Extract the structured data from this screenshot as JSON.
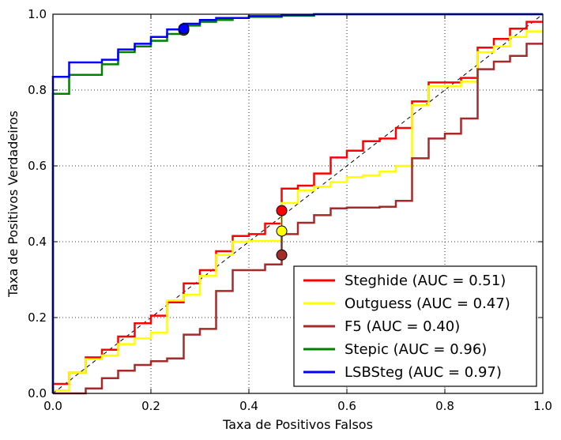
{
  "chart_data": {
    "type": "line",
    "xlabel": "Taxa de Positivos Falsos",
    "ylabel": "Taxa de Positivos Verdadeiros",
    "xlim": [
      0.0,
      1.0
    ],
    "ylim": [
      0.0,
      1.0
    ],
    "xticks": [
      "0.0",
      "0.2",
      "0.4",
      "0.6",
      "0.8",
      "1.0"
    ],
    "yticks": [
      "0.0",
      "0.2",
      "0.4",
      "0.6",
      "0.8",
      "1.0"
    ],
    "grid": true,
    "legend_position": "lower-right",
    "diagonal_reference": true,
    "series": [
      {
        "name": "Steghide (AUC = 0.51)",
        "color": "#ff0000",
        "points": [
          [
            0,
            0
          ],
          [
            0,
            0.025
          ],
          [
            0.033,
            0.025
          ],
          [
            0.033,
            0.055
          ],
          [
            0.067,
            0.055
          ],
          [
            0.067,
            0.095
          ],
          [
            0.1,
            0.095
          ],
          [
            0.1,
            0.115
          ],
          [
            0.133,
            0.115
          ],
          [
            0.133,
            0.15
          ],
          [
            0.167,
            0.15
          ],
          [
            0.167,
            0.185
          ],
          [
            0.2,
            0.185
          ],
          [
            0.2,
            0.205
          ],
          [
            0.233,
            0.205
          ],
          [
            0.233,
            0.24
          ],
          [
            0.267,
            0.24
          ],
          [
            0.267,
            0.29
          ],
          [
            0.3,
            0.29
          ],
          [
            0.3,
            0.325
          ],
          [
            0.333,
            0.325
          ],
          [
            0.333,
            0.375
          ],
          [
            0.367,
            0.375
          ],
          [
            0.367,
            0.415
          ],
          [
            0.4,
            0.415
          ],
          [
            0.4,
            0.42
          ],
          [
            0.433,
            0.42
          ],
          [
            0.433,
            0.448
          ],
          [
            0.467,
            0.448
          ],
          [
            0.467,
            0.54
          ],
          [
            0.5,
            0.54
          ],
          [
            0.5,
            0.548
          ],
          [
            0.533,
            0.548
          ],
          [
            0.533,
            0.58
          ],
          [
            0.567,
            0.58
          ],
          [
            0.567,
            0.622
          ],
          [
            0.6,
            0.622
          ],
          [
            0.6,
            0.64
          ],
          [
            0.633,
            0.64
          ],
          [
            0.633,
            0.665
          ],
          [
            0.667,
            0.665
          ],
          [
            0.667,
            0.672
          ],
          [
            0.7,
            0.672
          ],
          [
            0.7,
            0.7
          ],
          [
            0.733,
            0.7
          ],
          [
            0.733,
            0.77
          ],
          [
            0.767,
            0.77
          ],
          [
            0.767,
            0.82
          ],
          [
            0.833,
            0.82
          ],
          [
            0.833,
            0.832
          ],
          [
            0.867,
            0.832
          ],
          [
            0.867,
            0.912
          ],
          [
            0.9,
            0.912
          ],
          [
            0.9,
            0.935
          ],
          [
            0.933,
            0.935
          ],
          [
            0.933,
            0.962
          ],
          [
            0.967,
            0.962
          ],
          [
            0.967,
            0.98
          ],
          [
            1.0,
            0.98
          ]
        ]
      },
      {
        "name": "Outguess (AUC = 0.47)",
        "color": "#ffff00",
        "points": [
          [
            0,
            0
          ],
          [
            0,
            0.008
          ],
          [
            0.033,
            0.008
          ],
          [
            0.033,
            0.055
          ],
          [
            0.067,
            0.055
          ],
          [
            0.067,
            0.09
          ],
          [
            0.1,
            0.09
          ],
          [
            0.1,
            0.1
          ],
          [
            0.133,
            0.1
          ],
          [
            0.133,
            0.13
          ],
          [
            0.167,
            0.13
          ],
          [
            0.167,
            0.145
          ],
          [
            0.2,
            0.145
          ],
          [
            0.2,
            0.16
          ],
          [
            0.233,
            0.16
          ],
          [
            0.233,
            0.245
          ],
          [
            0.267,
            0.245
          ],
          [
            0.267,
            0.26
          ],
          [
            0.3,
            0.26
          ],
          [
            0.3,
            0.31
          ],
          [
            0.333,
            0.31
          ],
          [
            0.333,
            0.365
          ],
          [
            0.367,
            0.365
          ],
          [
            0.367,
            0.4
          ],
          [
            0.4,
            0.4
          ],
          [
            0.4,
            0.402
          ],
          [
            0.467,
            0.402
          ],
          [
            0.467,
            0.502
          ],
          [
            0.5,
            0.502
          ],
          [
            0.5,
            0.535
          ],
          [
            0.533,
            0.535
          ],
          [
            0.533,
            0.545
          ],
          [
            0.567,
            0.545
          ],
          [
            0.567,
            0.557
          ],
          [
            0.6,
            0.557
          ],
          [
            0.6,
            0.57
          ],
          [
            0.633,
            0.57
          ],
          [
            0.633,
            0.575
          ],
          [
            0.667,
            0.575
          ],
          [
            0.667,
            0.585
          ],
          [
            0.7,
            0.585
          ],
          [
            0.7,
            0.6
          ],
          [
            0.733,
            0.6
          ],
          [
            0.733,
            0.76
          ],
          [
            0.767,
            0.76
          ],
          [
            0.767,
            0.81
          ],
          [
            0.833,
            0.81
          ],
          [
            0.833,
            0.822
          ],
          [
            0.867,
            0.822
          ],
          [
            0.867,
            0.9
          ],
          [
            0.9,
            0.9
          ],
          [
            0.9,
            0.915
          ],
          [
            0.933,
            0.915
          ],
          [
            0.933,
            0.94
          ],
          [
            0.967,
            0.94
          ],
          [
            0.967,
            0.955
          ],
          [
            1.0,
            0.955
          ]
        ]
      },
      {
        "name": "F5 (AUC = 0.40)",
        "color": "#a52a2a",
        "points": [
          [
            0,
            0
          ],
          [
            0,
            0.0
          ],
          [
            0.067,
            0.0
          ],
          [
            0.067,
            0.013
          ],
          [
            0.1,
            0.013
          ],
          [
            0.1,
            0.04
          ],
          [
            0.133,
            0.04
          ],
          [
            0.133,
            0.06
          ],
          [
            0.167,
            0.06
          ],
          [
            0.167,
            0.075
          ],
          [
            0.2,
            0.075
          ],
          [
            0.2,
            0.085
          ],
          [
            0.233,
            0.085
          ],
          [
            0.233,
            0.092
          ],
          [
            0.267,
            0.092
          ],
          [
            0.267,
            0.155
          ],
          [
            0.3,
            0.155
          ],
          [
            0.3,
            0.17
          ],
          [
            0.333,
            0.17
          ],
          [
            0.333,
            0.27
          ],
          [
            0.367,
            0.27
          ],
          [
            0.367,
            0.325
          ],
          [
            0.433,
            0.325
          ],
          [
            0.433,
            0.34
          ],
          [
            0.467,
            0.34
          ],
          [
            0.467,
            0.42
          ],
          [
            0.5,
            0.42
          ],
          [
            0.5,
            0.45
          ],
          [
            0.533,
            0.45
          ],
          [
            0.533,
            0.47
          ],
          [
            0.567,
            0.47
          ],
          [
            0.567,
            0.488
          ],
          [
            0.6,
            0.488
          ],
          [
            0.6,
            0.49
          ],
          [
            0.667,
            0.49
          ],
          [
            0.667,
            0.492
          ],
          [
            0.7,
            0.492
          ],
          [
            0.7,
            0.508
          ],
          [
            0.733,
            0.508
          ],
          [
            0.733,
            0.62
          ],
          [
            0.767,
            0.62
          ],
          [
            0.767,
            0.672
          ],
          [
            0.8,
            0.672
          ],
          [
            0.8,
            0.685
          ],
          [
            0.833,
            0.685
          ],
          [
            0.833,
            0.725
          ],
          [
            0.867,
            0.725
          ],
          [
            0.867,
            0.855
          ],
          [
            0.9,
            0.855
          ],
          [
            0.9,
            0.875
          ],
          [
            0.933,
            0.875
          ],
          [
            0.933,
            0.89
          ],
          [
            0.967,
            0.89
          ],
          [
            0.967,
            0.922
          ],
          [
            1.0,
            0.922
          ]
        ]
      },
      {
        "name": "Stepic (AUC = 0.96)",
        "color": "#008000",
        "points": [
          [
            0,
            0
          ],
          [
            0,
            0.79
          ],
          [
            0.033,
            0.79
          ],
          [
            0.033,
            0.84
          ],
          [
            0.1,
            0.84
          ],
          [
            0.1,
            0.868
          ],
          [
            0.133,
            0.868
          ],
          [
            0.133,
            0.9
          ],
          [
            0.167,
            0.9
          ],
          [
            0.167,
            0.915
          ],
          [
            0.2,
            0.915
          ],
          [
            0.2,
            0.93
          ],
          [
            0.233,
            0.93
          ],
          [
            0.233,
            0.948
          ],
          [
            0.267,
            0.948
          ],
          [
            0.267,
            0.97
          ],
          [
            0.3,
            0.97
          ],
          [
            0.3,
            0.98
          ],
          [
            0.333,
            0.98
          ],
          [
            0.333,
            0.985
          ],
          [
            0.367,
            0.985
          ],
          [
            0.367,
            0.99
          ],
          [
            0.4,
            0.99
          ],
          [
            0.4,
            0.993
          ],
          [
            0.467,
            0.993
          ],
          [
            0.467,
            0.996
          ],
          [
            0.533,
            0.996
          ],
          [
            0.533,
            1.0
          ],
          [
            1.0,
            1.0
          ]
        ]
      },
      {
        "name": "LSBSteg (AUC = 0.97)",
        "color": "#0000ff",
        "points": [
          [
            0,
            0
          ],
          [
            0,
            0.835
          ],
          [
            0.033,
            0.835
          ],
          [
            0.033,
            0.873
          ],
          [
            0.1,
            0.873
          ],
          [
            0.1,
            0.88
          ],
          [
            0.133,
            0.88
          ],
          [
            0.133,
            0.907
          ],
          [
            0.167,
            0.907
          ],
          [
            0.167,
            0.922
          ],
          [
            0.2,
            0.922
          ],
          [
            0.2,
            0.94
          ],
          [
            0.233,
            0.94
          ],
          [
            0.233,
            0.96
          ],
          [
            0.267,
            0.96
          ],
          [
            0.267,
            0.975
          ],
          [
            0.3,
            0.975
          ],
          [
            0.3,
            0.985
          ],
          [
            0.333,
            0.985
          ],
          [
            0.333,
            0.99
          ],
          [
            0.4,
            0.99
          ],
          [
            0.4,
            0.995
          ],
          [
            0.467,
            0.995
          ],
          [
            0.467,
            0.998
          ],
          [
            0.533,
            0.998
          ],
          [
            0.533,
            1.0
          ],
          [
            1.0,
            1.0
          ]
        ]
      }
    ],
    "markers": [
      {
        "series": "Steghide (AUC = 0.51)",
        "x": 0.467,
        "y": 0.482,
        "color": "#ff0000"
      },
      {
        "series": "Outguess (AUC = 0.47)",
        "x": 0.467,
        "y": 0.428,
        "color": "#ffff00"
      },
      {
        "series": "F5 (AUC = 0.40)",
        "x": 0.467,
        "y": 0.365,
        "color": "#a52a2a"
      },
      {
        "series": "Stepic (AUC = 0.96)",
        "x": 0.267,
        "y": 0.958,
        "color": "#008000"
      },
      {
        "series": "LSBSteg (AUC = 0.97)",
        "x": 0.267,
        "y": 0.962,
        "color": "#0000ff"
      }
    ]
  }
}
